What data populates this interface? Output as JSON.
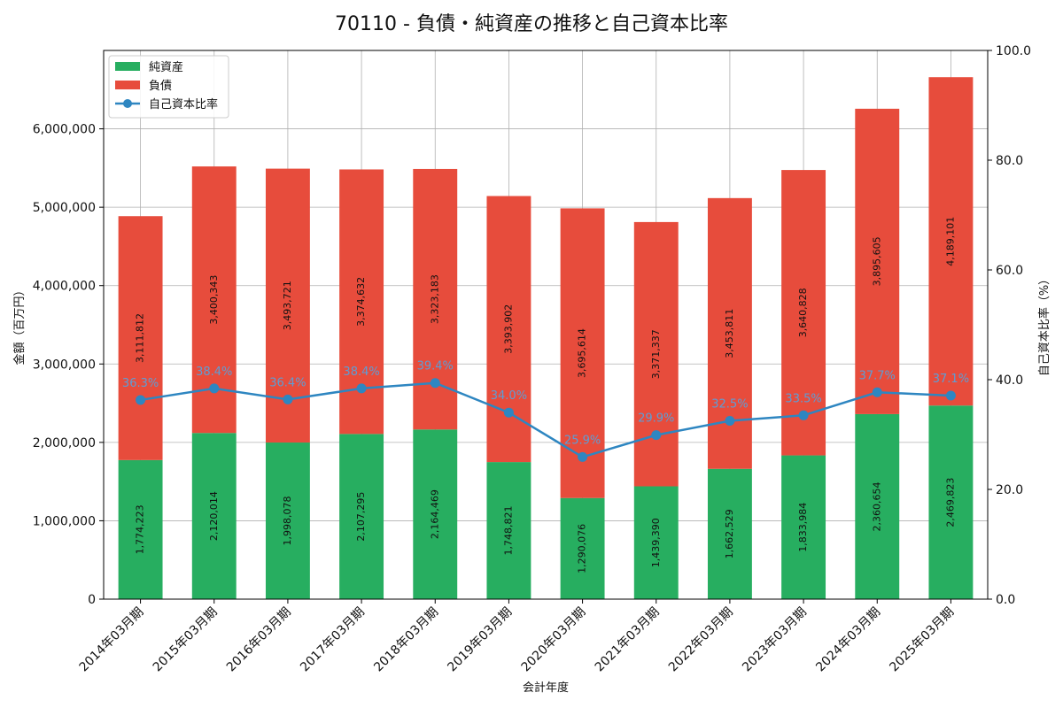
{
  "chart_data": {
    "type": "bar",
    "stacked": true,
    "title": "70110 - 負債・純資産の推移と自己資本比率",
    "xlabel": "会計年度",
    "ylabel": "金額（百万円）",
    "y2label": "自己資本比率（%）",
    "ylim": [
      0,
      7000000
    ],
    "y2lim": [
      0,
      100
    ],
    "yticks": [
      0,
      1000000,
      2000000,
      3000000,
      4000000,
      5000000,
      6000000
    ],
    "ytick_labels": [
      "0",
      "1,000,000",
      "2,000,000",
      "3,000,000",
      "4,000,000",
      "5,000,000",
      "6,000,000"
    ],
    "y2ticks": [
      0,
      20,
      40,
      60,
      80,
      100
    ],
    "y2tick_labels": [
      "0.0",
      "20.0",
      "40.0",
      "60.0",
      "80.0",
      "100.0"
    ],
    "grid": true,
    "legend_position": "top-left",
    "categories": [
      "2014年03月期",
      "2015年03月期",
      "2016年03月期",
      "2017年03月期",
      "2018年03月期",
      "2019年03月期",
      "2020年03月期",
      "2021年03月期",
      "2022年03月期",
      "2023年03月期",
      "2024年03月期",
      "2025年03月期"
    ],
    "series": [
      {
        "name": "純資産",
        "kind": "bar",
        "color": "#27ae60",
        "values": [
          1774223,
          2120014,
          1998078,
          2107295,
          2164469,
          1748821,
          1290076,
          1439390,
          1662529,
          1833984,
          2360654,
          2469823
        ],
        "labels": [
          "1,774,223",
          "2,120,014",
          "1,998,078",
          "2,107,295",
          "2,164,469",
          "1,748,821",
          "1,290,076",
          "1,439,390",
          "1,662,529",
          "1,833,984",
          "2,360,654",
          "2,469,823"
        ]
      },
      {
        "name": "負債",
        "kind": "bar",
        "color": "#e74c3c",
        "values": [
          3111812,
          3400343,
          3493721,
          3374632,
          3323183,
          3393902,
          3695614,
          3371337,
          3453811,
          3640828,
          3895605,
          4189101
        ],
        "labels": [
          "3,111,812",
          "3,400,343",
          "3,493,721",
          "3,374,632",
          "3,323,183",
          "3,393,902",
          "3,695,614",
          "3,371,337",
          "3,453,811",
          "3,640,828",
          "3,895,605",
          "4,189,101"
        ]
      },
      {
        "name": "自己資本比率",
        "kind": "line",
        "axis": "right",
        "color": "#2e86c1",
        "values": [
          36.3,
          38.4,
          36.4,
          38.4,
          39.4,
          34.0,
          25.9,
          29.9,
          32.5,
          33.5,
          37.7,
          37.1
        ],
        "labels": [
          "36.3%",
          "38.4%",
          "36.4%",
          "38.4%",
          "39.4%",
          "34.0%",
          "25.9%",
          "29.9%",
          "32.5%",
          "33.5%",
          "37.7%",
          "37.1%"
        ]
      }
    ]
  }
}
